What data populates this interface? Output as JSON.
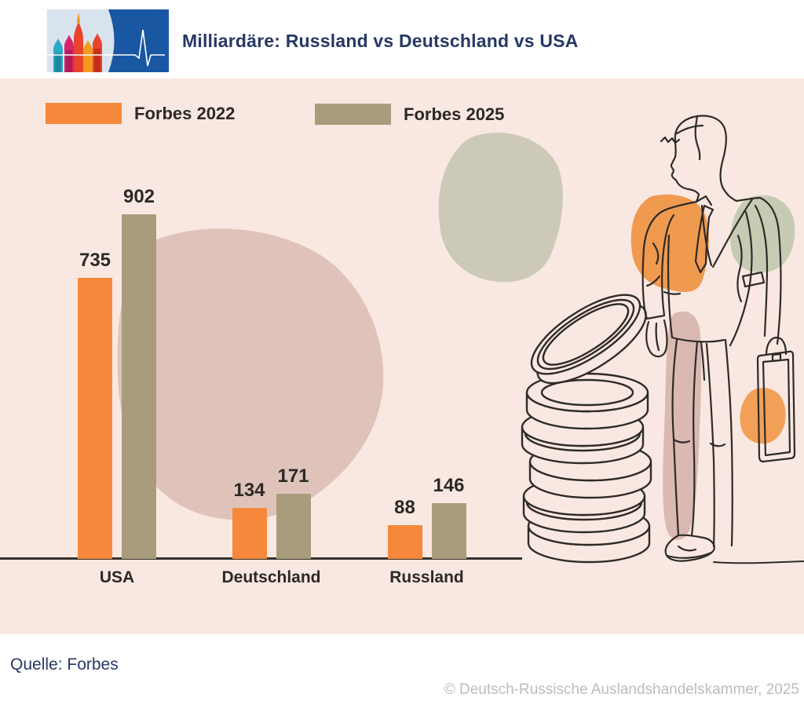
{
  "header": {
    "title": "Milliardäre: Russland vs Deutschland vs USA",
    "logo_icon": "st-basils-cathedral-pulse-logo"
  },
  "legend": [
    {
      "label": "Forbes 2022",
      "color": "#F6883B"
    },
    {
      "label": "Forbes 2025",
      "color": "#A89C7D"
    }
  ],
  "chart_data": {
    "type": "bar",
    "title": "Milliardäre: Russland vs Deutschland vs USA",
    "categories": [
      "USA",
      "Deutschland",
      "Russland"
    ],
    "series": [
      {
        "name": "Forbes 2022",
        "color": "#F6883B",
        "values": [
          735,
          134,
          88
        ]
      },
      {
        "name": "Forbes 2025",
        "color": "#A89C7D",
        "values": [
          902,
          171,
          146
        ]
      }
    ],
    "value_labels": true,
    "xlabel": "",
    "ylabel": "",
    "ylim": [
      0,
      950
    ],
    "grid": false,
    "axes": "baseline-only",
    "legend_position": "top-left"
  },
  "footer": {
    "source": "Quelle: Forbes",
    "copyright": "© Deutsch-Russische Auslandshandelskammer, 2025"
  },
  "colors": {
    "background_pink": "#F9E8E1",
    "accent_orange": "#F6883B",
    "accent_olive": "#A89C7D",
    "rose_blob": "#DFC3BB",
    "sage_blob": "#CDC9B9",
    "navy_text": "#273864",
    "ink_text": "#2B2926",
    "logo_blue": "#1A57A2",
    "copyright_gray": "#BDBBBB"
  },
  "illustrations": [
    "coin-stack-line-art",
    "businessman-with-briefcase-line-art"
  ]
}
